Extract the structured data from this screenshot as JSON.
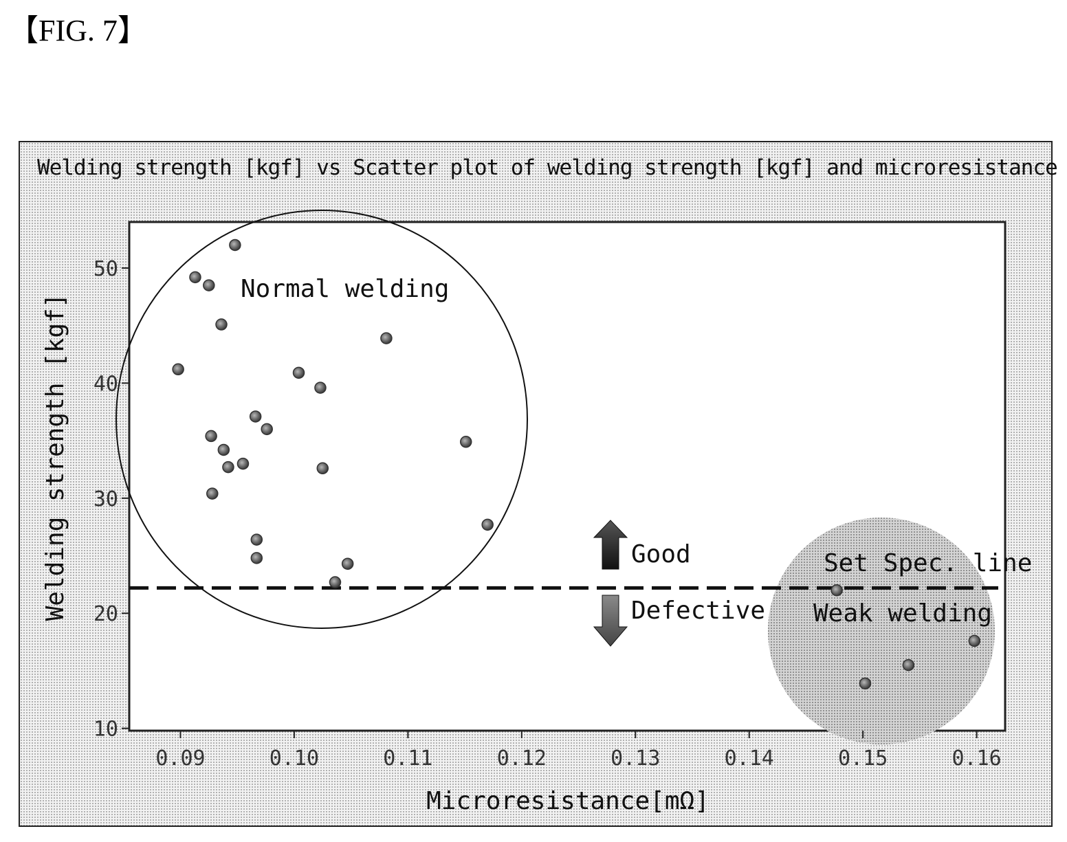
{
  "figure_label": "【FIG. 7】",
  "chart_data": {
    "type": "scatter",
    "title": "Welding strength [kgf] vs Scatter plot of welding strength [kgf] and microresistance [mΩ]",
    "xlabel": "Microresistance[mΩ]",
    "ylabel": "Welding strength [kgf]",
    "xlim": [
      0.0855,
      0.1625
    ],
    "ylim": [
      9.8,
      54.0
    ],
    "x_ticks": [
      0.09,
      0.1,
      0.11,
      0.12,
      0.13,
      0.14,
      0.15,
      0.16
    ],
    "x_tick_labels": [
      "0.09",
      "0.10",
      "0.11",
      "0.12",
      "0.13",
      "0.14",
      "0.15",
      "0.16"
    ],
    "y_ticks": [
      10,
      20,
      30,
      40,
      50
    ],
    "y_tick_labels": [
      "10",
      "20",
      "30",
      "40",
      "50"
    ],
    "grid": false,
    "spec_line": {
      "y": 22.2,
      "label": "Set Spec. line"
    },
    "annotations": {
      "normal_region": "Normal welding",
      "weak_region": "Weak welding",
      "good": "Good",
      "defective": "Defective"
    },
    "points": [
      {
        "x": 0.0948,
        "y": 52.0
      },
      {
        "x": 0.0913,
        "y": 49.2
      },
      {
        "x": 0.0925,
        "y": 48.5
      },
      {
        "x": 0.0936,
        "y": 45.1
      },
      {
        "x": 0.0898,
        "y": 41.2
      },
      {
        "x": 0.1004,
        "y": 40.9
      },
      {
        "x": 0.1023,
        "y": 39.6
      },
      {
        "x": 0.1081,
        "y": 43.9
      },
      {
        "x": 0.0966,
        "y": 37.1
      },
      {
        "x": 0.0976,
        "y": 36.0
      },
      {
        "x": 0.0927,
        "y": 35.4
      },
      {
        "x": 0.0938,
        "y": 34.2
      },
      {
        "x": 0.0955,
        "y": 33.0
      },
      {
        "x": 0.0942,
        "y": 32.7
      },
      {
        "x": 0.1025,
        "y": 32.6
      },
      {
        "x": 0.1151,
        "y": 34.9
      },
      {
        "x": 0.0928,
        "y": 30.4
      },
      {
        "x": 0.117,
        "y": 27.7
      },
      {
        "x": 0.0967,
        "y": 26.4
      },
      {
        "x": 0.0967,
        "y": 24.8
      },
      {
        "x": 0.1047,
        "y": 24.3
      },
      {
        "x": 0.1036,
        "y": 22.7
      },
      {
        "x": 0.1477,
        "y": 22.0
      },
      {
        "x": 0.1598,
        "y": 17.6
      },
      {
        "x": 0.154,
        "y": 15.5
      },
      {
        "x": 0.1502,
        "y": 13.9
      }
    ]
  }
}
